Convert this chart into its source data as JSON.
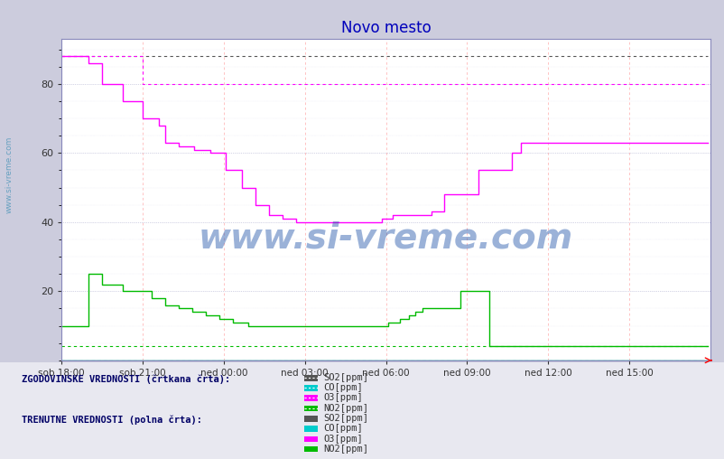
{
  "title": "Novo mesto",
  "title_color": "#0000bb",
  "title_fontsize": 12,
  "bg_color": "#ccccdd",
  "plot_bg_color": "#ffffff",
  "ylim": [
    0,
    93
  ],
  "yticks": [
    20,
    40,
    60,
    80
  ],
  "xtick_labels": [
    "sob 18:00",
    "sob 21:00",
    "ned 00:00",
    "ned 03:00",
    "ned 06:00",
    "ned 09:00",
    "ned 12:00",
    "ned 15:00"
  ],
  "xtick_positions": [
    0,
    36,
    72,
    108,
    144,
    180,
    216,
    252
  ],
  "total_points": 288,
  "watermark": "www.si-vreme.com",
  "colors": {
    "SO2": "#555555",
    "CO": "#00cccc",
    "O3": "#ff00ff",
    "NO2": "#00bb00"
  },
  "SO2_hist": [
    88,
    88,
    88,
    88,
    88,
    88,
    88,
    88,
    88,
    88,
    88,
    88,
    88,
    88,
    88,
    88,
    88,
    88,
    88,
    88,
    88,
    88,
    88,
    88,
    88,
    88,
    88,
    88,
    88,
    88,
    88,
    88,
    88,
    88,
    88,
    88,
    88,
    88,
    88,
    88,
    88,
    88,
    88,
    88,
    88,
    88,
    88,
    88,
    88,
    88,
    88,
    88,
    88,
    88,
    88,
    88,
    88,
    88,
    88,
    88,
    88,
    88,
    88,
    88,
    88,
    88,
    88,
    88,
    88,
    88,
    88,
    88,
    88,
    88,
    88,
    88,
    88,
    88,
    88,
    88,
    88,
    88,
    88,
    88,
    88,
    88,
    88,
    88,
    88,
    88,
    88,
    88,
    88,
    88,
    88,
    88,
    88,
    88,
    88,
    88,
    88,
    88,
    88,
    88,
    88,
    88,
    88,
    88,
    88,
    88,
    88,
    88,
    88,
    88,
    88,
    88,
    88,
    88,
    88,
    88,
    88,
    88,
    88,
    88,
    88,
    88,
    88,
    88,
    88,
    88,
    88,
    88,
    88,
    88,
    88,
    88,
    88,
    88,
    88,
    88,
    88,
    88,
    88,
    88,
    88,
    88,
    88,
    88,
    88,
    88,
    88,
    88,
    88,
    88,
    88,
    88,
    88,
    88,
    88,
    88,
    88,
    88,
    88,
    88,
    88,
    88,
    88,
    88,
    88,
    88,
    88,
    88,
    88,
    88,
    88,
    88,
    88,
    88,
    88,
    88,
    88,
    88,
    88,
    88,
    88,
    88,
    88,
    88,
    88,
    88,
    88,
    88,
    88,
    88,
    88,
    88,
    88,
    88,
    88,
    88,
    88,
    88,
    88,
    88,
    88,
    88,
    88,
    88,
    88,
    88,
    88,
    88,
    88,
    88,
    88,
    88,
    88,
    88,
    88,
    88,
    88,
    88,
    88,
    88,
    88,
    88,
    88,
    88,
    88,
    88,
    88,
    88,
    88,
    88,
    88,
    88,
    88,
    88,
    88,
    88,
    88,
    88,
    88,
    88,
    88,
    88,
    88,
    88,
    88,
    88,
    88,
    88,
    88,
    88,
    88,
    88,
    88,
    88,
    88,
    88,
    88,
    88,
    88,
    88,
    88,
    88,
    88,
    88,
    88,
    88,
    88,
    88,
    88,
    88,
    88,
    88,
    88,
    88,
    88,
    88,
    88,
    88,
    88,
    88,
    88,
    88,
    88,
    88
  ],
  "CO_hist": [
    0,
    0,
    0,
    0,
    0,
    0,
    0,
    0,
    0,
    0,
    0,
    0,
    0,
    0,
    0,
    0,
    0,
    0,
    0,
    0,
    0,
    0,
    0,
    0,
    0,
    0,
    0,
    0,
    0,
    0,
    0,
    0,
    0,
    0,
    0,
    0,
    0,
    0,
    0,
    0,
    0,
    0,
    0,
    0,
    0,
    0,
    0,
    0,
    0,
    0,
    0,
    0,
    0,
    0,
    0,
    0,
    0,
    0,
    0,
    0,
    0,
    0,
    0,
    0,
    0,
    0,
    0,
    0,
    0,
    0,
    0,
    0,
    0,
    0,
    0,
    0,
    0,
    0,
    0,
    0,
    0,
    0,
    0,
    0,
    0,
    0,
    0,
    0,
    0,
    0,
    0,
    0,
    0,
    0,
    0,
    0,
    0,
    0,
    0,
    0,
    0,
    0,
    0,
    0,
    0,
    0,
    0,
    0,
    0,
    0,
    0,
    0,
    0,
    0,
    0,
    0,
    0,
    0,
    0,
    0,
    0,
    0,
    0,
    0,
    0,
    0,
    0,
    0,
    0,
    0,
    0,
    0,
    0,
    0,
    0,
    0,
    0,
    0,
    0,
    0,
    0,
    0,
    0,
    0,
    0,
    0,
    0,
    0,
    0,
    0,
    0,
    0,
    0,
    0,
    0,
    0,
    0,
    0,
    0,
    0,
    0,
    0,
    0,
    0,
    0,
    0,
    0,
    0,
    0,
    0,
    0,
    0,
    0,
    0,
    0,
    0,
    0,
    0,
    0,
    0,
    0,
    0,
    0,
    0,
    0,
    0,
    0,
    0,
    0,
    0,
    0,
    0,
    0,
    0,
    0,
    0,
    0,
    0,
    0,
    0,
    0,
    0,
    0,
    0,
    0,
    0,
    0,
    0,
    0,
    0,
    0,
    0,
    0,
    0,
    0,
    0,
    0,
    0,
    0,
    0,
    0,
    0,
    0,
    0,
    0,
    0,
    0,
    0,
    0,
    0,
    0,
    0,
    0,
    0,
    0,
    0,
    0,
    0,
    0,
    0,
    0,
    0,
    0,
    0,
    0,
    0,
    0,
    0,
    0,
    0,
    0,
    0,
    0,
    0,
    0,
    0,
    0,
    0,
    0,
    0,
    0,
    0,
    0,
    0,
    0,
    0,
    0,
    0,
    0,
    0,
    0,
    0,
    0,
    0,
    0,
    0,
    0,
    0,
    0,
    0,
    0,
    0,
    0,
    0,
    0,
    0,
    0,
    0
  ],
  "O3_hist": [
    88,
    88,
    88,
    88,
    88,
    88,
    88,
    88,
    88,
    88,
    88,
    88,
    88,
    88,
    88,
    88,
    88,
    88,
    88,
    88,
    88,
    88,
    88,
    88,
    88,
    88,
    88,
    88,
    88,
    88,
    88,
    88,
    88,
    88,
    88,
    88,
    80,
    80,
    80,
    80,
    80,
    80,
    80,
    80,
    80,
    80,
    80,
    80,
    80,
    80,
    80,
    80,
    80,
    80,
    80,
    80,
    80,
    80,
    80,
    80,
    80,
    80,
    80,
    80,
    80,
    80,
    80,
    80,
    80,
    80,
    80,
    80,
    80,
    80,
    80,
    80,
    80,
    80,
    80,
    80,
    80,
    80,
    80,
    80,
    80,
    80,
    80,
    80,
    80,
    80,
    80,
    80,
    80,
    80,
    80,
    80,
    80,
    80,
    80,
    80,
    80,
    80,
    80,
    80,
    80,
    80,
    80,
    80,
    80,
    80,
    80,
    80,
    80,
    80,
    80,
    80,
    80,
    80,
    80,
    80,
    80,
    80,
    80,
    80,
    80,
    80,
    80,
    80,
    80,
    80,
    80,
    80,
    80,
    80,
    80,
    80,
    80,
    80,
    80,
    80,
    80,
    80,
    80,
    80,
    80,
    80,
    80,
    80,
    80,
    80,
    80,
    80,
    80,
    80,
    80,
    80,
    80,
    80,
    80,
    80,
    80,
    80,
    80,
    80,
    80,
    80,
    80,
    80,
    80,
    80,
    80,
    80,
    80,
    80,
    80,
    80,
    80,
    80,
    80,
    80,
    80,
    80,
    80,
    80,
    80,
    80,
    80,
    80,
    80,
    80,
    80,
    80,
    80,
    80,
    80,
    80,
    80,
    80,
    80,
    80,
    80,
    80,
    80,
    80,
    80,
    80,
    80,
    80,
    80,
    80,
    80,
    80,
    80,
    80,
    80,
    80,
    80,
    80,
    80,
    80,
    80,
    80,
    80,
    80,
    80,
    80,
    80,
    80,
    80,
    80,
    80,
    80,
    80,
    80,
    80,
    80,
    80,
    80,
    80,
    80,
    80,
    80,
    80,
    80,
    80,
    80,
    80,
    80,
    80,
    80,
    80,
    80,
    80,
    80,
    80,
    80,
    80,
    80,
    80,
    80,
    80,
    80,
    80,
    80,
    80,
    80,
    80,
    80,
    80,
    80,
    80,
    80,
    80,
    80,
    80,
    80,
    80,
    80,
    80,
    80,
    80,
    80,
    80,
    80,
    80,
    80,
    80,
    80
  ],
  "NO2_hist": [
    4,
    4,
    4,
    4,
    4,
    4,
    4,
    4,
    4,
    4,
    4,
    4,
    4,
    4,
    4,
    4,
    4,
    4,
    4,
    4,
    4,
    4,
    4,
    4,
    4,
    4,
    4,
    4,
    4,
    4,
    4,
    4,
    4,
    4,
    4,
    4,
    4,
    4,
    4,
    4,
    4,
    4,
    4,
    4,
    4,
    4,
    4,
    4,
    4,
    4,
    4,
    4,
    4,
    4,
    4,
    4,
    4,
    4,
    4,
    4,
    4,
    4,
    4,
    4,
    4,
    4,
    4,
    4,
    4,
    4,
    4,
    4,
    4,
    4,
    4,
    4,
    4,
    4,
    4,
    4,
    4,
    4,
    4,
    4,
    4,
    4,
    4,
    4,
    4,
    4,
    4,
    4,
    4,
    4,
    4,
    4,
    4,
    4,
    4,
    4,
    4,
    4,
    4,
    4,
    4,
    4,
    4,
    4,
    4,
    4,
    4,
    4,
    4,
    4,
    4,
    4,
    4,
    4,
    4,
    4,
    4,
    4,
    4,
    4,
    4,
    4,
    4,
    4,
    4,
    4,
    4,
    4,
    4,
    4,
    4,
    4,
    4,
    4,
    4,
    4,
    4,
    4,
    4,
    4,
    4,
    4,
    4,
    4,
    4,
    4,
    4,
    4,
    4,
    4,
    4,
    4,
    4,
    4,
    4,
    4,
    4,
    4,
    4,
    4,
    4,
    4,
    4,
    4,
    4,
    4,
    4,
    4,
    4,
    4,
    4,
    4,
    4,
    4,
    4,
    4,
    4,
    4,
    4,
    4,
    4,
    4,
    4,
    4,
    4,
    4,
    4,
    4,
    4,
    4,
    4,
    4,
    4,
    4,
    4,
    4,
    4,
    4,
    4,
    4,
    4,
    4,
    4,
    4,
    4,
    4,
    4,
    4,
    4,
    4,
    4,
    4,
    4,
    4,
    4,
    4,
    4,
    4,
    4,
    4,
    4,
    4,
    4,
    4,
    4,
    4,
    4,
    4,
    4,
    4,
    4,
    4,
    4,
    4,
    4,
    4,
    4,
    4,
    4,
    4,
    4,
    4,
    4,
    4,
    4,
    4,
    4,
    4,
    4,
    4,
    4,
    4,
    4,
    4,
    4,
    4,
    4,
    4,
    4,
    4,
    4,
    4,
    4,
    4,
    4,
    4,
    4,
    4,
    4,
    4,
    4,
    4,
    4,
    4,
    4,
    4,
    4,
    4,
    4,
    4,
    4,
    4,
    4,
    4
  ],
  "SO2_curr": [
    0,
    0,
    0,
    0,
    0,
    0,
    0,
    0,
    0,
    0,
    0,
    0,
    0,
    0,
    0,
    0,
    0,
    0,
    0,
    0,
    0,
    0,
    0,
    0,
    0,
    0,
    0,
    0,
    0,
    0,
    0,
    0,
    0,
    0,
    0,
    0,
    0,
    0,
    0,
    0,
    0,
    0,
    0,
    0,
    0,
    0,
    0,
    0,
    0,
    0,
    0,
    0,
    0,
    0,
    0,
    0,
    0,
    0,
    0,
    0,
    0,
    0,
    0,
    0,
    0,
    0,
    0,
    0,
    0,
    0,
    0,
    0,
    0,
    0,
    0,
    0,
    0,
    0,
    0,
    0,
    0,
    0,
    0,
    0,
    0,
    0,
    0,
    0,
    0,
    0,
    0,
    0,
    0,
    0,
    0,
    0,
    0,
    0,
    0,
    0,
    0,
    0,
    0,
    0,
    0,
    0,
    0,
    0,
    0,
    0,
    0,
    0,
    0,
    0,
    0,
    0,
    0,
    0,
    0,
    0,
    0,
    0,
    0,
    0,
    0,
    0,
    0,
    0,
    0,
    0,
    0,
    0,
    0,
    0,
    0,
    0,
    0,
    0,
    0,
    0,
    0,
    0,
    0,
    0,
    0,
    0,
    0,
    0,
    0,
    0,
    0,
    0,
    0,
    0,
    0,
    0,
    0,
    0,
    0,
    0,
    0,
    0,
    0,
    0,
    0,
    0,
    0,
    0,
    0,
    0,
    0,
    0,
    0,
    0,
    0,
    0,
    0,
    0,
    0,
    0,
    0,
    0,
    0,
    0,
    0,
    0,
    0,
    0,
    0,
    0,
    0,
    0,
    0,
    0,
    0,
    0,
    0,
    0,
    0,
    0,
    0,
    0,
    0,
    0,
    0,
    0,
    0,
    0,
    0,
    0,
    0,
    0,
    0,
    0,
    0,
    0,
    0,
    0,
    0,
    0,
    0,
    0,
    0,
    0,
    0,
    0,
    0,
    0,
    0,
    0,
    0,
    0,
    0,
    0,
    0,
    0,
    0,
    0,
    0,
    0,
    0,
    0,
    0,
    0,
    0,
    0,
    0,
    0,
    0,
    0,
    0,
    0,
    0,
    0,
    0,
    0,
    0,
    0,
    0,
    0,
    0,
    0,
    0,
    0,
    0,
    0,
    0,
    0,
    0,
    0,
    0,
    0,
    0,
    0,
    0,
    0,
    0,
    0,
    0,
    0,
    0,
    0,
    0,
    0,
    0,
    0,
    0,
    0
  ],
  "CO_curr": [
    0,
    0,
    0,
    0,
    0,
    0,
    0,
    0,
    0,
    0,
    0,
    0,
    0,
    0,
    0,
    0,
    0,
    0,
    0,
    0,
    0,
    0,
    0,
    0,
    0,
    0,
    0,
    0,
    0,
    0,
    0,
    0,
    0,
    0,
    0,
    0,
    0,
    0,
    0,
    0,
    0,
    0,
    0,
    0,
    0,
    0,
    0,
    0,
    0,
    0,
    0,
    0,
    0,
    0,
    0,
    0,
    0,
    0,
    0,
    0,
    0,
    0,
    0,
    0,
    0,
    0,
    0,
    0,
    0,
    0,
    0,
    0,
    0,
    0,
    0,
    0,
    0,
    0,
    0,
    0,
    0,
    0,
    0,
    0,
    0,
    0,
    0,
    0,
    0,
    0,
    0,
    0,
    0,
    0,
    0,
    0,
    0,
    0,
    0,
    0,
    0,
    0,
    0,
    0,
    0,
    0,
    0,
    0,
    0,
    0,
    0,
    0,
    0,
    0,
    0,
    0,
    0,
    0,
    0,
    0,
    0,
    0,
    0,
    0,
    0,
    0,
    0,
    0,
    0,
    0,
    0,
    0,
    0,
    0,
    0,
    0,
    0,
    0,
    0,
    0,
    0,
    0,
    0,
    0,
    0,
    0,
    0,
    0,
    0,
    0,
    0,
    0,
    0,
    0,
    0,
    0,
    0,
    0,
    0,
    0,
    0,
    0,
    0,
    0,
    0,
    0,
    0,
    0,
    0,
    0,
    0,
    0,
    0,
    0,
    0,
    0,
    0,
    0,
    0,
    0,
    0,
    0,
    0,
    0,
    0,
    0,
    0,
    0,
    0,
    0,
    0,
    0,
    0,
    0,
    0,
    0,
    0,
    0,
    0,
    0,
    0,
    0,
    0,
    0,
    0,
    0,
    0,
    0,
    0,
    0,
    0,
    0,
    0,
    0,
    0,
    0,
    0,
    0,
    0,
    0,
    0,
    0,
    0,
    0,
    0,
    0,
    0,
    0,
    0,
    0,
    0,
    0,
    0,
    0,
    0,
    0,
    0,
    0,
    0,
    0,
    0,
    0,
    0,
    0,
    0,
    0,
    0,
    0,
    0,
    0,
    0,
    0,
    0,
    0,
    0,
    0,
    0,
    0,
    0,
    0,
    0,
    0,
    0,
    0,
    0,
    0,
    0,
    0,
    0,
    0,
    0,
    0,
    0,
    0,
    0,
    0,
    0,
    0,
    0,
    0,
    0,
    0,
    0,
    0,
    0,
    0,
    0,
    0
  ],
  "O3_curr": [
    88,
    88,
    88,
    88,
    88,
    88,
    88,
    88,
    88,
    88,
    88,
    88,
    86,
    86,
    86,
    86,
    86,
    86,
    80,
    80,
    80,
    80,
    80,
    80,
    80,
    80,
    80,
    75,
    75,
    75,
    75,
    75,
    75,
    75,
    75,
    75,
    70,
    70,
    70,
    70,
    70,
    70,
    70,
    68,
    68,
    68,
    63,
    63,
    63,
    63,
    63,
    63,
    62,
    62,
    62,
    62,
    62,
    62,
    62,
    61,
    61,
    61,
    61,
    61,
    61,
    61,
    60,
    60,
    60,
    60,
    60,
    60,
    60,
    55,
    55,
    55,
    55,
    55,
    55,
    55,
    50,
    50,
    50,
    50,
    50,
    50,
    45,
    45,
    45,
    45,
    45,
    45,
    42,
    42,
    42,
    42,
    42,
    42,
    41,
    41,
    41,
    41,
    41,
    41,
    40,
    40,
    40,
    40,
    40,
    40,
    40,
    40,
    40,
    40,
    40,
    40,
    40,
    40,
    40,
    40,
    40,
    40,
    40,
    40,
    40,
    40,
    40,
    40,
    40,
    40,
    40,
    40,
    40,
    40,
    40,
    40,
    40,
    40,
    40,
    40,
    40,
    40,
    41,
    41,
    41,
    41,
    41,
    42,
    42,
    42,
    42,
    42,
    42,
    42,
    42,
    42,
    42,
    42,
    42,
    42,
    42,
    42,
    42,
    42,
    43,
    43,
    43,
    43,
    43,
    43,
    48,
    48,
    48,
    48,
    48,
    48,
    48,
    48,
    48,
    48,
    48,
    48,
    48,
    48,
    48,
    55,
    55,
    55,
    55,
    55,
    55,
    55,
    55,
    55,
    55,
    55,
    55,
    55,
    55,
    55,
    60,
    60,
    60,
    60,
    63,
    63,
    63,
    63,
    63,
    63,
    63,
    63,
    63,
    63,
    63,
    63,
    63,
    63,
    63,
    63,
    63,
    63,
    63,
    63,
    63,
    63,
    63,
    63,
    63,
    63,
    63,
    63,
    63,
    63,
    63,
    63,
    63,
    63,
    63,
    63,
    63,
    63,
    63,
    63,
    63,
    63,
    63,
    63,
    63,
    63,
    63,
    63,
    63,
    63,
    63,
    63,
    63,
    63,
    63,
    63,
    63,
    63,
    63,
    63,
    63,
    63,
    63,
    63,
    63,
    63,
    63,
    63,
    63,
    63,
    63,
    63,
    63,
    63,
    63,
    63,
    63,
    63,
    63,
    63,
    63,
    63,
    63,
    63
  ],
  "NO2_curr": [
    10,
    10,
    10,
    10,
    10,
    10,
    10,
    10,
    10,
    10,
    10,
    10,
    25,
    25,
    25,
    25,
    25,
    25,
    22,
    22,
    22,
    22,
    22,
    22,
    22,
    22,
    22,
    20,
    20,
    20,
    20,
    20,
    20,
    20,
    20,
    20,
    20,
    20,
    20,
    20,
    18,
    18,
    18,
    18,
    18,
    18,
    16,
    16,
    16,
    16,
    16,
    16,
    15,
    15,
    15,
    15,
    15,
    15,
    14,
    14,
    14,
    14,
    14,
    14,
    13,
    13,
    13,
    13,
    13,
    13,
    12,
    12,
    12,
    12,
    12,
    12,
    11,
    11,
    11,
    11,
    11,
    11,
    11,
    10,
    10,
    10,
    10,
    10,
    10,
    10,
    10,
    10,
    10,
    10,
    10,
    10,
    10,
    10,
    10,
    10,
    10,
    10,
    10,
    10,
    10,
    10,
    10,
    10,
    10,
    10,
    10,
    10,
    10,
    10,
    10,
    10,
    10,
    10,
    10,
    10,
    10,
    10,
    10,
    10,
    10,
    10,
    10,
    10,
    10,
    10,
    10,
    10,
    10,
    10,
    10,
    10,
    10,
    10,
    10,
    10,
    10,
    10,
    10,
    10,
    10,
    11,
    11,
    11,
    11,
    11,
    12,
    12,
    12,
    12,
    13,
    13,
    13,
    14,
    14,
    14,
    15,
    15,
    15,
    15,
    15,
    15,
    15,
    15,
    15,
    15,
    15,
    15,
    15,
    15,
    15,
    15,
    15,
    20,
    20,
    20,
    20,
    20,
    20,
    20,
    20,
    20,
    20,
    20,
    20,
    20,
    4,
    4,
    4,
    4,
    4,
    4,
    4,
    4,
    4,
    4,
    4,
    4,
    4,
    4,
    4,
    4,
    4,
    4,
    4,
    4,
    4,
    4,
    4,
    4,
    4,
    4,
    4,
    4,
    4,
    4,
    4,
    4,
    4,
    4,
    4,
    4,
    4,
    4,
    4,
    4,
    4,
    4,
    4,
    4,
    4,
    4,
    4,
    4,
    4,
    4,
    4,
    4,
    4,
    4,
    4,
    4,
    4,
    4,
    4,
    4,
    4,
    4,
    4,
    4,
    4,
    4,
    4,
    4,
    4,
    4,
    4,
    4,
    4,
    4,
    4,
    4,
    4,
    4,
    4,
    4,
    4,
    4,
    4,
    4,
    4,
    4,
    4,
    4,
    4,
    4,
    4,
    4,
    4,
    4,
    4,
    4,
    4,
    4
  ]
}
